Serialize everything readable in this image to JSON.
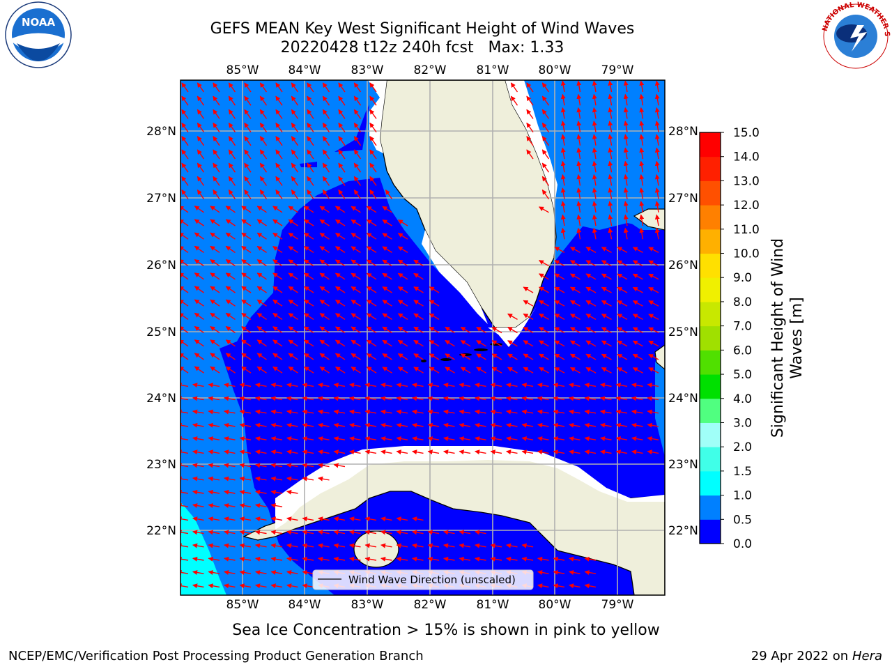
{
  "title": {
    "line1": "GEFS MEAN Key West Significant Height of Wind Waves",
    "line2": "20220428 t12z 240h fcst   Max: 1.33"
  },
  "map": {
    "lon_ticks": [
      "85°W",
      "84°W",
      "83°W",
      "82°W",
      "81°W",
      "80°W",
      "79°W"
    ],
    "lat_ticks": [
      "28°N",
      "27°N",
      "26°N",
      "25°N",
      "24°N",
      "23°N",
      "22°N"
    ],
    "lon_range": [
      -86.0,
      -78.3
    ],
    "lat_range": [
      21.0,
      28.8
    ],
    "grid": true,
    "ocean_color_low": "#0000ff",
    "ocean_color_mid": "#0080ff",
    "ocean_color_high": "#00ffff",
    "land_color": "#efefdb",
    "arrow_color": "#ff0000",
    "legend_label": "Wind Wave Direction (unscaled)"
  },
  "colorbar": {
    "label": "Significant Height of Wind Waves [m]",
    "ticks": [
      "0.0",
      "0.5",
      "1.0",
      "1.5",
      "2.0",
      "3.0",
      "4.0",
      "5.0",
      "6.0",
      "7.0",
      "8.0",
      "9.0",
      "10.0",
      "11.0",
      "12.0",
      "13.0",
      "14.0",
      "15.0"
    ],
    "colors": [
      "#0000ff",
      "#0080ff",
      "#00ffff",
      "#40ffe8",
      "#a0fff8",
      "#50ff80",
      "#00e000",
      "#50e000",
      "#a0e000",
      "#c8e800",
      "#f0f000",
      "#ffe000",
      "#ffb000",
      "#ff8000",
      "#ff5000",
      "#ff2000",
      "#ff0000"
    ]
  },
  "subtitle": "Sea Ice Concentration > 15% is shown in pink to yellow",
  "credit_left": "NCEP/EMC/Verification Post Processing Product Generation Branch",
  "credit_right_date": "29 Apr 2022 on",
  "credit_right_host": "Hera",
  "logos": {
    "noaa_icon": "noaa-logo",
    "noaa_text": "NOAA",
    "nws_icon": "nws-logo",
    "nws_text": "NATIONAL WEATHER SERVICE"
  }
}
